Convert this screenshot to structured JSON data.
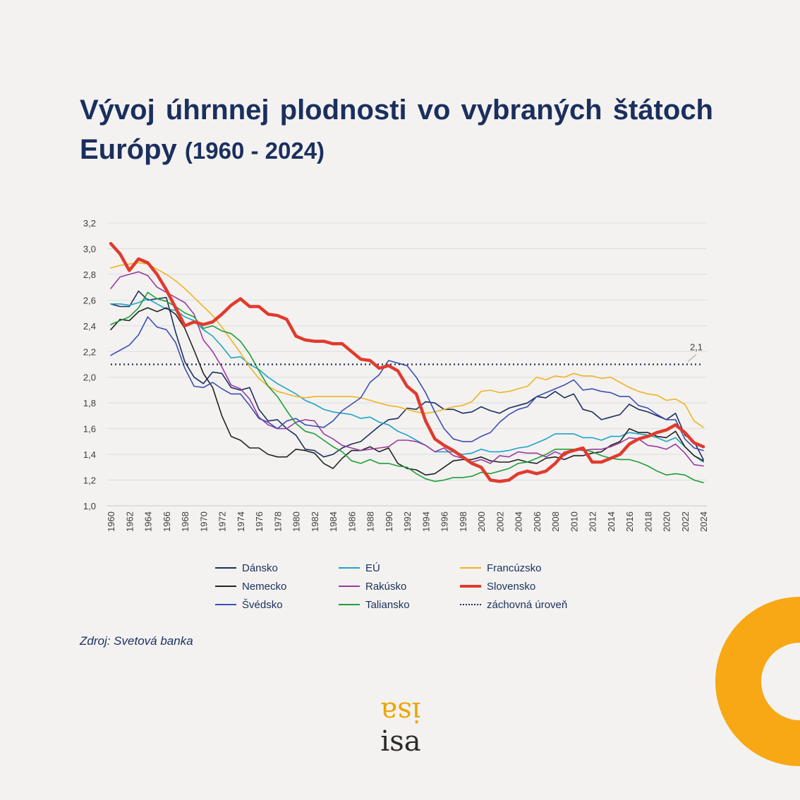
{
  "header": {
    "title_main": "Vývoj úhrnnej plodnosti vo vybraných štátoch Európy",
    "title_years": "(1960 - 2024)"
  },
  "source": "Zdroj: Svetová banka",
  "logo": {
    "text": "isa"
  },
  "colors": {
    "title": "#1b2f5e",
    "accent_ring": "#f7a814",
    "background": "#f3f2f0"
  },
  "chart_data": {
    "type": "line",
    "xlabel": "",
    "ylabel": "",
    "ylim": [
      1.0,
      3.2
    ],
    "xlim": [
      1960,
      2024
    ],
    "yticks": [
      "1,0",
      "1,2",
      "1,4",
      "1,6",
      "1,8",
      "2,0",
      "2,2",
      "2,4",
      "2,6",
      "2,8",
      "3,0",
      "3,2"
    ],
    "xticks": [
      "1960",
      "1962",
      "1964",
      "1966",
      "1968",
      "1970",
      "1972",
      "1974",
      "1976",
      "1978",
      "1980",
      "1982",
      "1984",
      "1986",
      "1988",
      "1990",
      "1992",
      "1994",
      "1996",
      "1998",
      "2000",
      "2002",
      "2004",
      "2006",
      "2008",
      "2010",
      "2012",
      "2014",
      "2016",
      "2018",
      "2020",
      "2022",
      "2024"
    ],
    "grid": true,
    "legend_position": "bottom",
    "x": [
      1960,
      1961,
      1962,
      1963,
      1964,
      1965,
      1966,
      1967,
      1968,
      1969,
      1970,
      1971,
      1972,
      1973,
      1974,
      1975,
      1976,
      1977,
      1978,
      1979,
      1980,
      1981,
      1982,
      1983,
      1984,
      1985,
      1986,
      1987,
      1988,
      1989,
      1990,
      1991,
      1992,
      1993,
      1994,
      1995,
      1996,
      1997,
      1998,
      1999,
      2000,
      2001,
      2002,
      2003,
      2004,
      2005,
      2006,
      2007,
      2008,
      2009,
      2010,
      2011,
      2012,
      2013,
      2014,
      2015,
      2016,
      2017,
      2018,
      2019,
      2020,
      2021,
      2022,
      2023,
      2024
    ],
    "series": [
      {
        "name": "Dánsko",
        "color": "#1b2f5e",
        "width": 1.6,
        "dash": "",
        "values": [
          2.57,
          2.55,
          2.55,
          2.67,
          2.6,
          2.61,
          2.62,
          2.35,
          2.12,
          2.0,
          1.95,
          2.04,
          2.03,
          1.92,
          1.9,
          1.92,
          1.75,
          1.66,
          1.67,
          1.6,
          1.55,
          1.44,
          1.43,
          1.38,
          1.4,
          1.45,
          1.48,
          1.5,
          1.56,
          1.62,
          1.67,
          1.68,
          1.76,
          1.75,
          1.81,
          1.8,
          1.75,
          1.75,
          1.72,
          1.73,
          1.77,
          1.74,
          1.72,
          1.76,
          1.78,
          1.8,
          1.85,
          1.84,
          1.89,
          1.84,
          1.87,
          1.75,
          1.73,
          1.67,
          1.69,
          1.71,
          1.79,
          1.75,
          1.73,
          1.7,
          1.67,
          1.72,
          1.55,
          1.5,
          1.36
        ]
      },
      {
        "name": "EÚ",
        "color": "#1fa3c8",
        "width": 1.6,
        "dash": "",
        "values": [
          2.57,
          2.57,
          2.56,
          2.58,
          2.61,
          2.57,
          2.53,
          2.52,
          2.47,
          2.44,
          2.37,
          2.32,
          2.24,
          2.15,
          2.16,
          2.1,
          2.06,
          2.0,
          1.95,
          1.91,
          1.87,
          1.82,
          1.79,
          1.75,
          1.73,
          1.72,
          1.71,
          1.68,
          1.69,
          1.65,
          1.63,
          1.58,
          1.55,
          1.51,
          1.47,
          1.42,
          1.42,
          1.42,
          1.4,
          1.41,
          1.44,
          1.42,
          1.42,
          1.43,
          1.45,
          1.46,
          1.49,
          1.52,
          1.56,
          1.56,
          1.56,
          1.53,
          1.53,
          1.51,
          1.54,
          1.54,
          1.57,
          1.56,
          1.55,
          1.53,
          1.5,
          1.53,
          1.46,
          1.39,
          1.34
        ]
      },
      {
        "name": "Francúzsko",
        "color": "#f2b323",
        "width": 1.6,
        "dash": "",
        "values": [
          2.85,
          2.87,
          2.88,
          2.89,
          2.88,
          2.84,
          2.8,
          2.75,
          2.69,
          2.62,
          2.55,
          2.48,
          2.39,
          2.29,
          2.19,
          2.08,
          1.99,
          1.93,
          1.89,
          1.87,
          1.85,
          1.84,
          1.85,
          1.85,
          1.85,
          1.85,
          1.85,
          1.84,
          1.82,
          1.8,
          1.78,
          1.77,
          1.75,
          1.73,
          1.72,
          1.73,
          1.75,
          1.77,
          1.78,
          1.81,
          1.89,
          1.9,
          1.88,
          1.89,
          1.91,
          1.93,
          2.0,
          1.98,
          2.01,
          2.0,
          2.03,
          2.01,
          2.01,
          1.99,
          2.0,
          1.96,
          1.92,
          1.89,
          1.87,
          1.86,
          1.82,
          1.83,
          1.79,
          1.66,
          1.61
        ]
      },
      {
        "name": "Nemecko",
        "color": "#222222",
        "width": 1.6,
        "dash": "",
        "values": [
          2.37,
          2.45,
          2.44,
          2.51,
          2.54,
          2.51,
          2.54,
          2.49,
          2.38,
          2.21,
          2.03,
          1.92,
          1.7,
          1.54,
          1.51,
          1.45,
          1.45,
          1.4,
          1.38,
          1.38,
          1.44,
          1.43,
          1.41,
          1.33,
          1.29,
          1.37,
          1.43,
          1.43,
          1.46,
          1.42,
          1.45,
          1.33,
          1.29,
          1.28,
          1.24,
          1.25,
          1.3,
          1.35,
          1.36,
          1.36,
          1.38,
          1.35,
          1.34,
          1.34,
          1.36,
          1.34,
          1.33,
          1.37,
          1.38,
          1.36,
          1.39,
          1.39,
          1.41,
          1.42,
          1.47,
          1.5,
          1.6,
          1.57,
          1.57,
          1.54,
          1.53,
          1.58,
          1.46,
          1.39,
          1.35
        ]
      },
      {
        "name": "Rakúsko",
        "color": "#9b3aa0",
        "width": 1.6,
        "dash": "",
        "values": [
          2.69,
          2.78,
          2.8,
          2.82,
          2.79,
          2.7,
          2.66,
          2.62,
          2.58,
          2.49,
          2.29,
          2.2,
          2.08,
          1.94,
          1.91,
          1.83,
          1.69,
          1.63,
          1.6,
          1.6,
          1.65,
          1.67,
          1.66,
          1.56,
          1.52,
          1.47,
          1.45,
          1.43,
          1.44,
          1.45,
          1.46,
          1.51,
          1.51,
          1.5,
          1.47,
          1.42,
          1.45,
          1.39,
          1.37,
          1.34,
          1.36,
          1.33,
          1.39,
          1.38,
          1.42,
          1.41,
          1.41,
          1.38,
          1.42,
          1.39,
          1.44,
          1.43,
          1.44,
          1.44,
          1.46,
          1.49,
          1.53,
          1.52,
          1.47,
          1.46,
          1.44,
          1.48,
          1.41,
          1.32,
          1.31
        ]
      },
      {
        "name": "Slovensko",
        "color": "#e03b2e",
        "width": 4.5,
        "dash": "",
        "values": [
          3.04,
          2.96,
          2.83,
          2.92,
          2.89,
          2.8,
          2.68,
          2.54,
          2.4,
          2.43,
          2.41,
          2.43,
          2.49,
          2.56,
          2.61,
          2.55,
          2.55,
          2.49,
          2.48,
          2.45,
          2.32,
          2.29,
          2.28,
          2.28,
          2.26,
          2.26,
          2.2,
          2.14,
          2.13,
          2.07,
          2.09,
          2.05,
          1.93,
          1.87,
          1.66,
          1.52,
          1.47,
          1.43,
          1.38,
          1.33,
          1.3,
          1.2,
          1.19,
          1.2,
          1.25,
          1.27,
          1.25,
          1.27,
          1.33,
          1.41,
          1.43,
          1.45,
          1.34,
          1.34,
          1.37,
          1.4,
          1.48,
          1.52,
          1.54,
          1.57,
          1.59,
          1.63,
          1.57,
          1.49,
          1.46
        ]
      },
      {
        "name": "Švédsko",
        "color": "#3b4fb3",
        "width": 1.6,
        "dash": "",
        "values": [
          2.17,
          2.21,
          2.25,
          2.33,
          2.47,
          2.39,
          2.37,
          2.27,
          2.07,
          1.93,
          1.92,
          1.96,
          1.91,
          1.87,
          1.87,
          1.78,
          1.68,
          1.65,
          1.6,
          1.66,
          1.68,
          1.63,
          1.62,
          1.61,
          1.66,
          1.74,
          1.79,
          1.84,
          1.96,
          2.02,
          2.13,
          2.11,
          2.09,
          2.0,
          1.88,
          1.73,
          1.6,
          1.52,
          1.5,
          1.5,
          1.54,
          1.57,
          1.65,
          1.71,
          1.75,
          1.77,
          1.85,
          1.88,
          1.91,
          1.94,
          1.98,
          1.9,
          1.91,
          1.89,
          1.88,
          1.85,
          1.85,
          1.78,
          1.76,
          1.71,
          1.67,
          1.67,
          1.52,
          1.45,
          1.43
        ]
      },
      {
        "name": "Taliansko",
        "color": "#1f9e3a",
        "width": 1.6,
        "dash": "",
        "values": [
          2.41,
          2.44,
          2.47,
          2.54,
          2.66,
          2.61,
          2.59,
          2.55,
          2.5,
          2.47,
          2.38,
          2.4,
          2.36,
          2.34,
          2.28,
          2.18,
          2.05,
          1.93,
          1.85,
          1.74,
          1.64,
          1.58,
          1.56,
          1.51,
          1.46,
          1.42,
          1.35,
          1.33,
          1.36,
          1.33,
          1.33,
          1.31,
          1.3,
          1.25,
          1.21,
          1.19,
          1.2,
          1.22,
          1.22,
          1.23,
          1.26,
          1.25,
          1.27,
          1.29,
          1.33,
          1.34,
          1.37,
          1.4,
          1.44,
          1.44,
          1.44,
          1.44,
          1.42,
          1.39,
          1.37,
          1.36,
          1.36,
          1.34,
          1.31,
          1.27,
          1.24,
          1.25,
          1.24,
          1.2,
          1.18
        ]
      },
      {
        "name": "záchovná úroveň",
        "color": "#1b2f5e",
        "width": 2.2,
        "dash": "2 4",
        "values": [
          2.1,
          2.1,
          2.1,
          2.1,
          2.1,
          2.1,
          2.1,
          2.1,
          2.1,
          2.1,
          2.1,
          2.1,
          2.1,
          2.1,
          2.1,
          2.1,
          2.1,
          2.1,
          2.1,
          2.1,
          2.1,
          2.1,
          2.1,
          2.1,
          2.1,
          2.1,
          2.1,
          2.1,
          2.1,
          2.1,
          2.1,
          2.1,
          2.1,
          2.1,
          2.1,
          2.1,
          2.1,
          2.1,
          2.1,
          2.1,
          2.1,
          2.1,
          2.1,
          2.1,
          2.1,
          2.1,
          2.1,
          2.1,
          2.1,
          2.1,
          2.1,
          2.1,
          2.1,
          2.1,
          2.1,
          2.1,
          2.1,
          2.1,
          2.1,
          2.1,
          2.1,
          2.1,
          2.1,
          2.1,
          2.1
        ]
      }
    ],
    "annotations": [
      {
        "text": "2,1",
        "x": 2024,
        "y": 2.1
      }
    ]
  }
}
